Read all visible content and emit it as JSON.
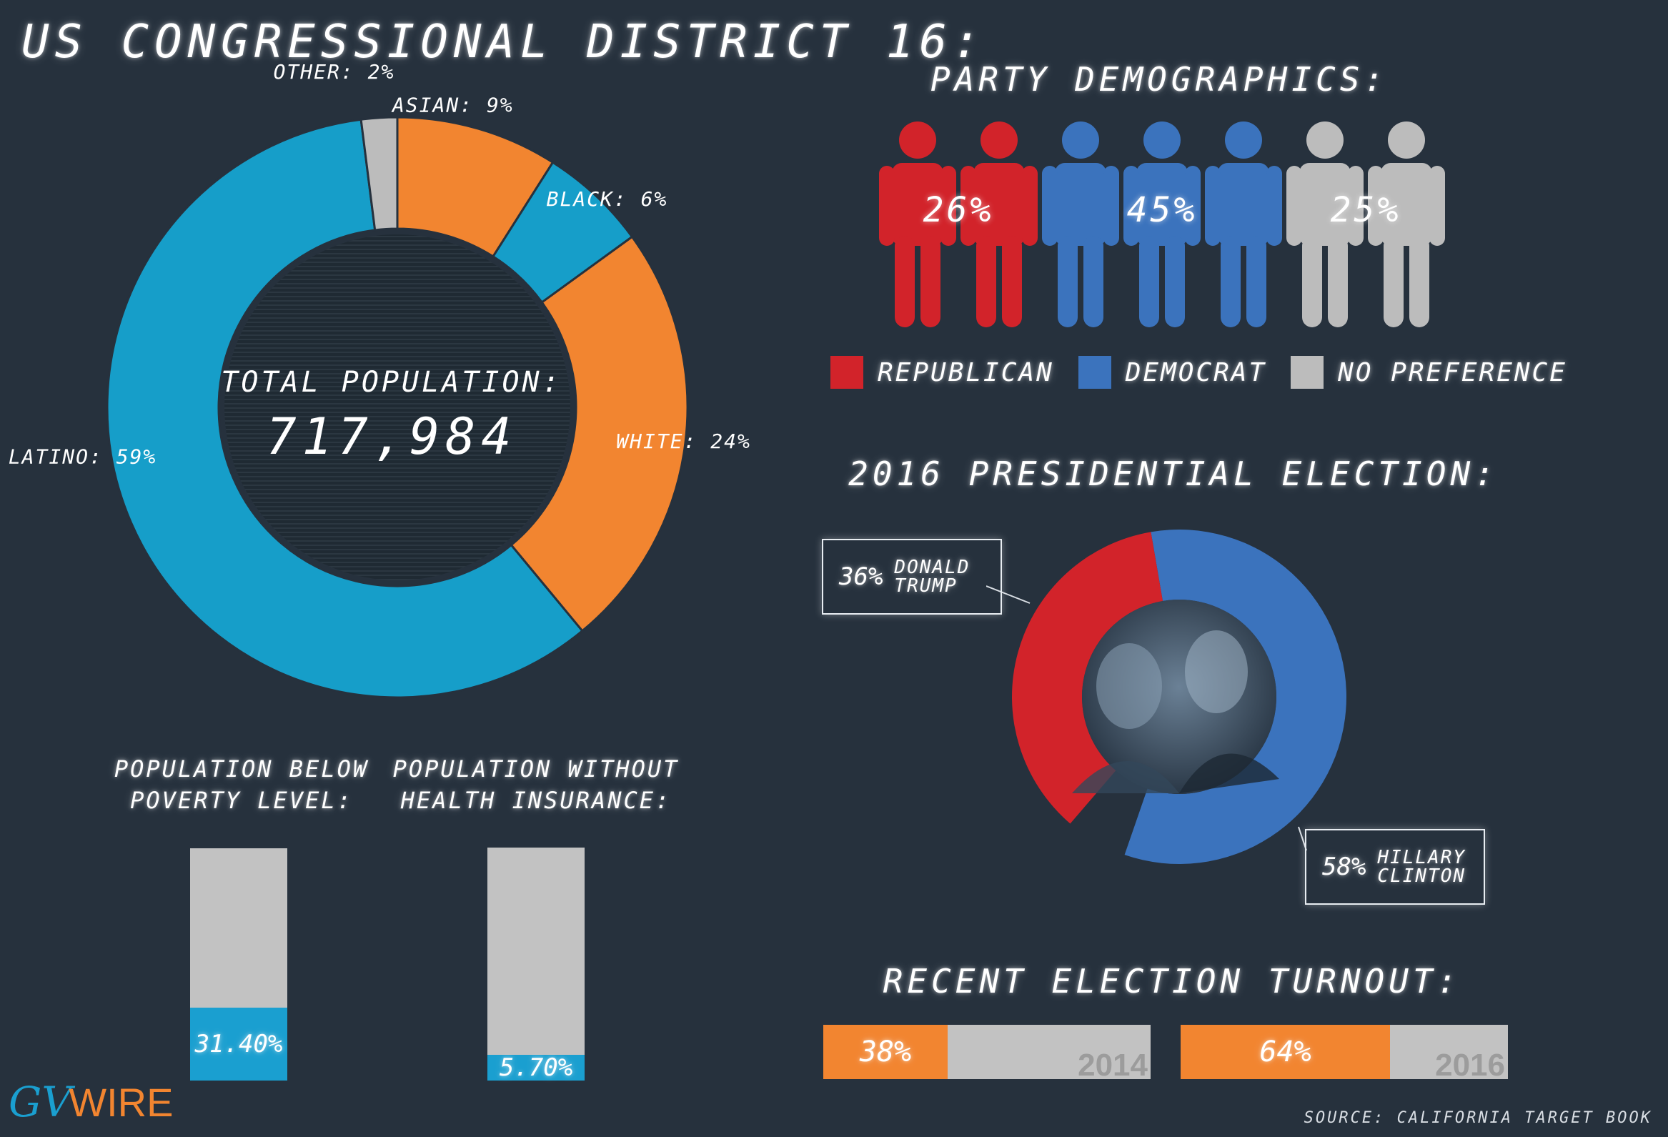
{
  "header": {
    "title": "US CONGRESSIONAL DISTRICT 16:"
  },
  "ethnicity": {
    "center_label": "TOTAL POPULATION:",
    "center_value": "717,984"
  },
  "party": {
    "title": "PARTY DEMOGRAPHICS:",
    "groups": [
      {
        "label": "26%",
        "color": "#d2232a"
      },
      {
        "label": "45%",
        "color": "#3b73bd"
      },
      {
        "label": "25%",
        "color": "#bcbcbc"
      }
    ],
    "legend": [
      {
        "label": "REPUBLICAN",
        "color": "#d2232a"
      },
      {
        "label": "DEMOCRAT",
        "color": "#3b73bd"
      },
      {
        "label": "NO PREFERENCE",
        "color": "#bcbcbc"
      }
    ]
  },
  "election": {
    "title": "2016 PRESIDENTIAL ELECTION:",
    "trump": {
      "pct": "36%",
      "name_line1": "DONALD",
      "name_line2": "TRUMP"
    },
    "clinton": {
      "pct": "58%",
      "name_line1": "HILLARY",
      "name_line2": "CLINTON"
    }
  },
  "poverty": {
    "title_line1": "POPULATION BELOW",
    "title_line2": "POVERTY LEVEL:",
    "label": "31.40%"
  },
  "insurance": {
    "title_line1": "POPULATION WITHOUT",
    "title_line2": "HEALTH INSURANCE:",
    "label": "5.70%"
  },
  "turnout": {
    "title": "RECENT ELECTION TURNOUT:",
    "bars": [
      {
        "label": "38%",
        "year": "2014"
      },
      {
        "label": "64%",
        "year": "2016"
      }
    ]
  },
  "footer": {
    "source": "SOURCE: CALIFORNIA TARGET BOOK",
    "logo_mark": "GV",
    "logo_text": "WIRE"
  },
  "chart_data": [
    {
      "type": "pie",
      "categories": [
        "LATINO",
        "WHITE",
        "BLACK",
        "ASIAN",
        "OTHER"
      ],
      "values": [
        59,
        24,
        6,
        9,
        2
      ],
      "labels": [
        "LATINO: 59%",
        "WHITE: 24%",
        "BLACK: 6%",
        "ASIAN: 9%",
        "OTHER: 2%"
      ],
      "colors": [
        "#169ec9",
        "#f28530",
        "#169ec9",
        "#f28530",
        "#bcbcbc"
      ],
      "title": "US CONGRESSIONAL DISTRICT 16:"
    },
    {
      "type": "bar",
      "categories": [
        "REPUBLICAN",
        "DEMOCRAT",
        "NO PREFERENCE"
      ],
      "values": [
        26,
        45,
        25
      ],
      "title": "PARTY DEMOGRAPHICS:"
    },
    {
      "type": "pie",
      "categories": [
        "DONALD TRUMP",
        "HILLARY CLINTON"
      ],
      "values": [
        36,
        58
      ],
      "colors": [
        "#d2232a",
        "#3b73bd"
      ],
      "title": "2016 PRESIDENTIAL ELECTION:"
    },
    {
      "type": "bar",
      "categories": [
        "POPULATION BELOW POVERTY LEVEL:",
        "POPULATION WITHOUT HEALTH INSURANCE:"
      ],
      "values": [
        31.4,
        5.7
      ],
      "ylim": [
        0,
        100
      ]
    },
    {
      "type": "bar",
      "categories": [
        "2014",
        "2016"
      ],
      "values": [
        38,
        64
      ],
      "ylim": [
        0,
        100
      ],
      "title": "RECENT ELECTION TURNOUT:"
    }
  ]
}
